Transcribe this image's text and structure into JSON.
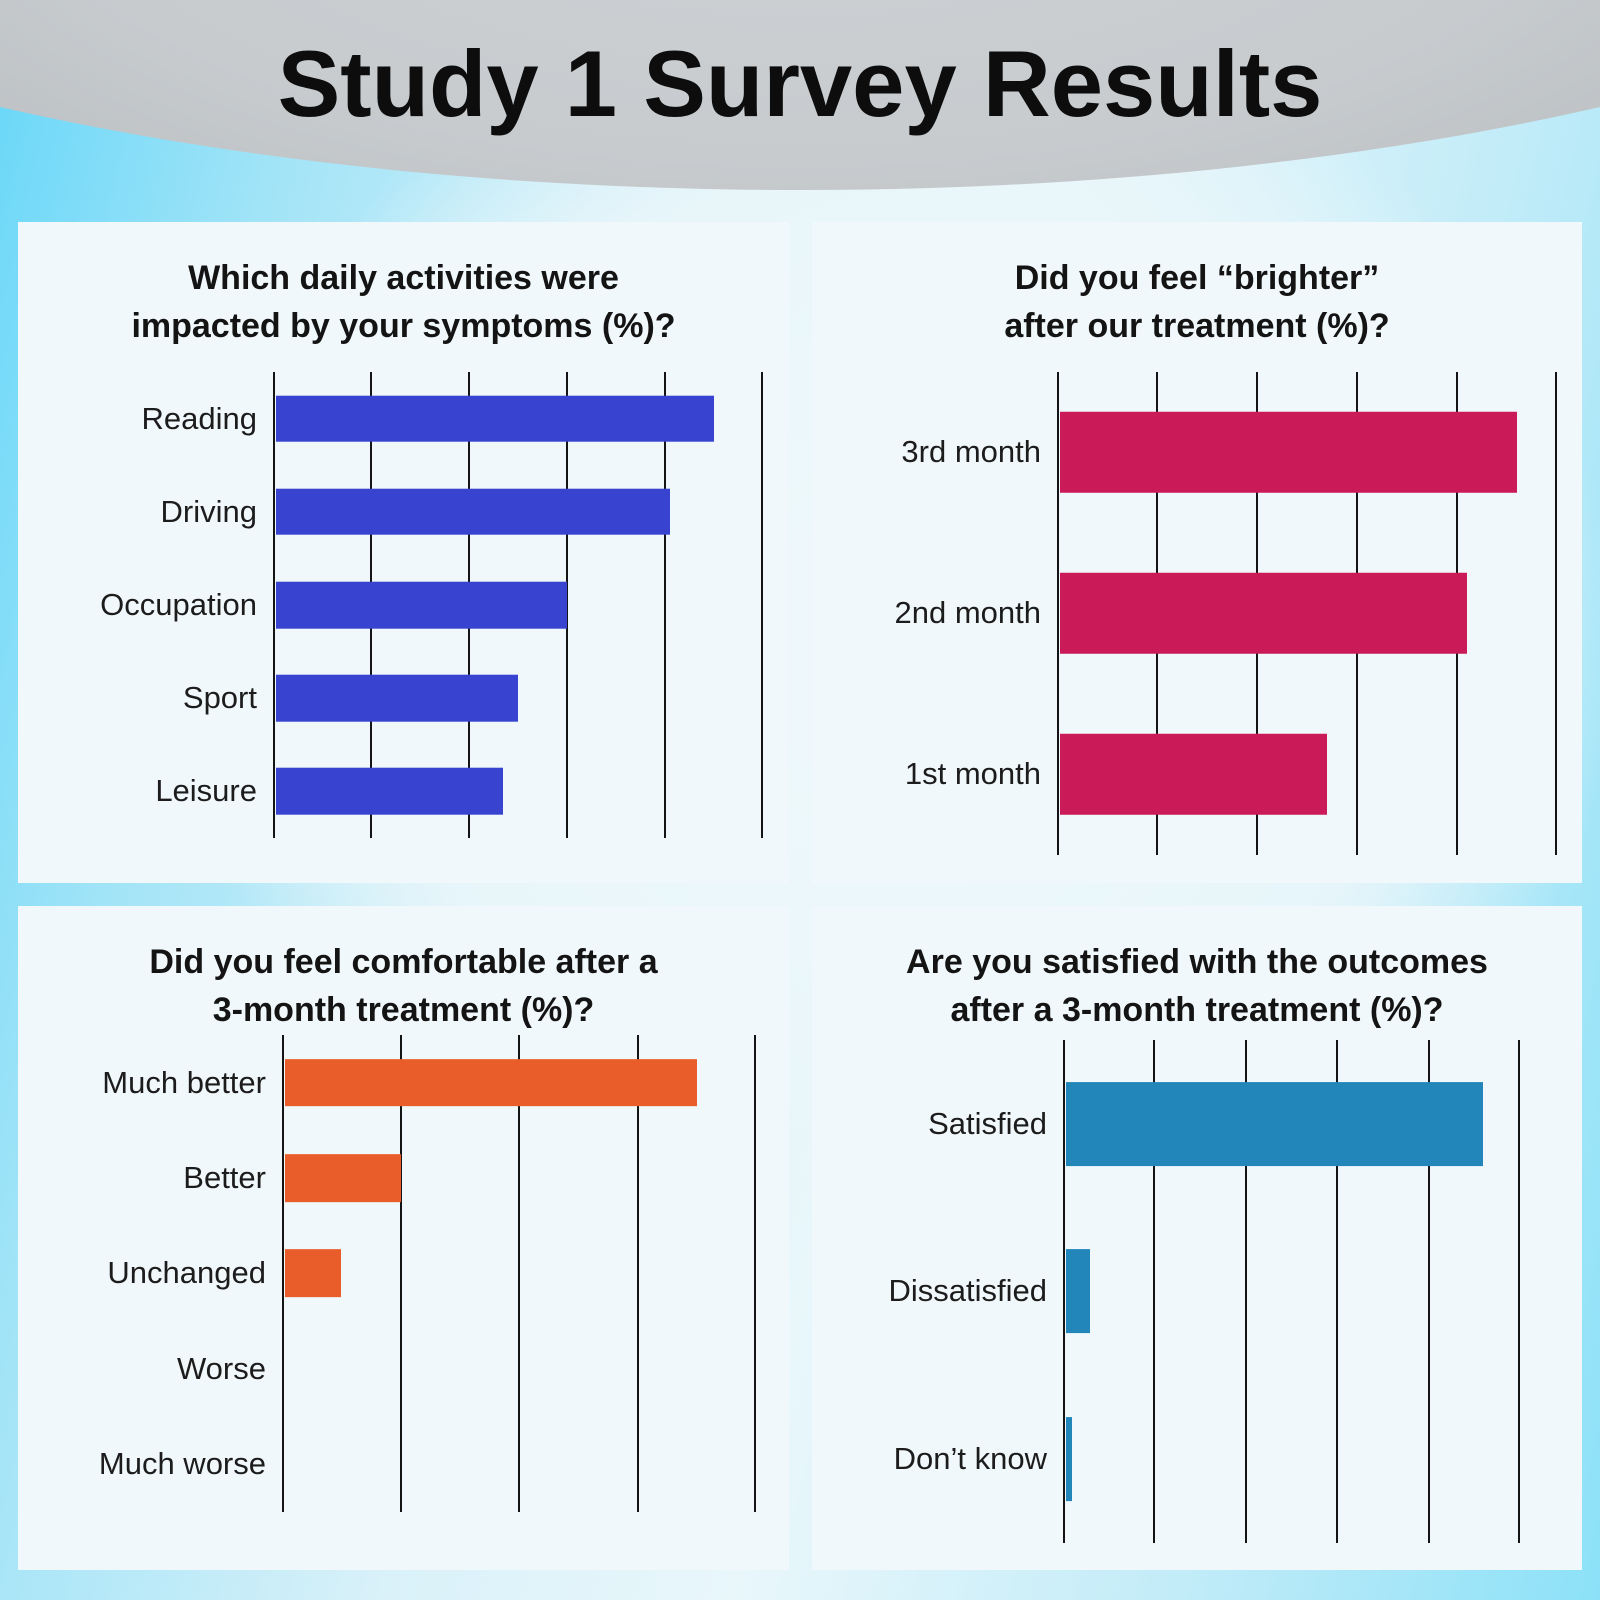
{
  "page_title": "Study 1 Survey Results",
  "colors": {
    "background_cyan": "#7edcf8",
    "panel_background": "#f1f8fb",
    "banner_gray": "#c2c6c9",
    "gridline": "#141414",
    "title_text": "#0d0d0d",
    "activities_blue": "#3843d0",
    "brighter_crimson": "#ca1a57",
    "comfortable_orange": "#e95d2b",
    "satisfied_blue": "#2286ba"
  },
  "chart_data": [
    {
      "type": "bar",
      "orientation": "horizontal",
      "title": "Which daily activities were\nimpacted by your symptoms (%)?",
      "categories": [
        "Reading",
        "Driving",
        "Occupation",
        "Sport",
        "Leisure"
      ],
      "values": [
        90,
        81,
        60,
        50,
        47
      ],
      "value_unit": "%",
      "axis_max": 100,
      "grid_interval": 20,
      "grid": "vertical-lines-unlabeled",
      "legend": "none",
      "bar_color": "#3843d0"
    },
    {
      "type": "bar",
      "orientation": "horizontal",
      "title": "Did you feel “brighter”\nafter our treatment (%)?",
      "categories": [
        "3rd month",
        "2nd month",
        "1st month"
      ],
      "values": [
        92,
        82,
        54
      ],
      "value_unit": "%",
      "axis_max": 100,
      "grid_interval": 20,
      "grid": "vertical-lines-unlabeled",
      "legend": "none",
      "bar_color": "#ca1a57"
    },
    {
      "type": "bar",
      "orientation": "horizontal",
      "title": "Did you feel comfortable after a\n3-month treatment (%)?",
      "categories": [
        "Much better",
        "Better",
        "Unchanged",
        "Worse",
        "Much worse"
      ],
      "values": [
        70,
        20,
        10,
        0,
        0
      ],
      "value_unit": "%",
      "axis_max": 80,
      "grid_interval": 20,
      "grid": "vertical-lines-unlabeled",
      "legend": "none",
      "bar_color": "#e95d2b"
    },
    {
      "type": "bar",
      "orientation": "horizontal",
      "title": "Are you satisfied with the outcomes\nafter a 3-month treatment (%)?",
      "categories": [
        "Satisfied",
        "Dissatisfied",
        "Don’t know"
      ],
      "values": [
        92,
        6,
        2
      ],
      "value_unit": "%",
      "axis_max": 100,
      "grid_interval": 20,
      "grid": "vertical-lines-unlabeled",
      "legend": "none",
      "bar_color": "#2286ba"
    }
  ]
}
